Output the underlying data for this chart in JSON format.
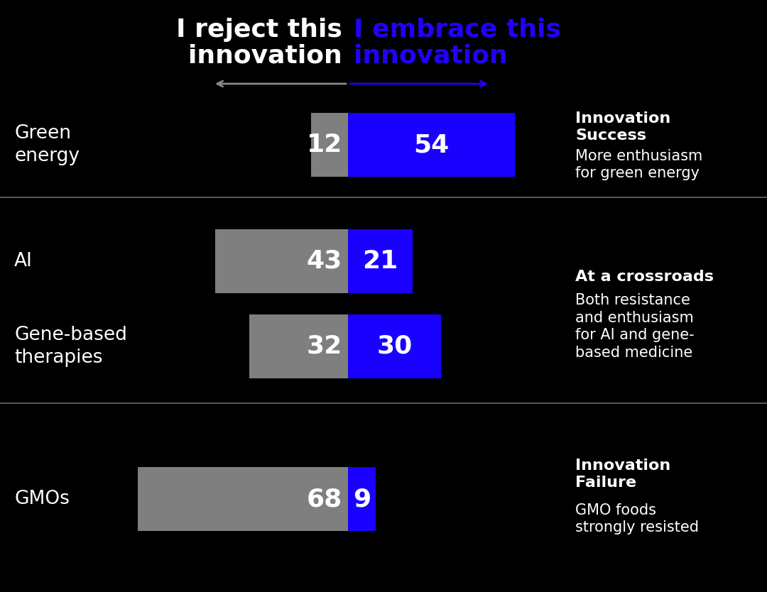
{
  "bg_color": "#000000",
  "title_reject": "I reject this\ninnovation",
  "title_embrace": "I embrace this\ninnovation",
  "title_color_reject": "#ffffff",
  "title_color_embrace": "#2200ff",
  "arrow_color_reject": "#888888",
  "arrow_color_embrace": "#2200ff",
  "gray_color": "#7f7f7f",
  "blue_color": "#1a00ff",
  "divider_color": "#444444",
  "sections": [
    {
      "label": "Green\nenergy",
      "reject_val": 12,
      "embrace_val": 54
    },
    {
      "label": "AI",
      "reject_val": 43,
      "embrace_val": 21
    },
    {
      "label": "Gene-based\ntherapies",
      "reject_val": 32,
      "embrace_val": 30
    },
    {
      "label": "GMOs",
      "reject_val": 68,
      "embrace_val": 9
    }
  ],
  "annotations": [
    {
      "bold": "Innovation\nSuccess",
      "normal": "More enthusiasm\nfor green energy"
    },
    {
      "bold": "At a crossroads",
      "normal": "Both resistance\nand enthusiasm\nfor AI and gene-\nbased medicine"
    },
    {
      "bold": "Innovation\nFailure",
      "normal": "GMO foods\nstrongly resisted"
    }
  ]
}
